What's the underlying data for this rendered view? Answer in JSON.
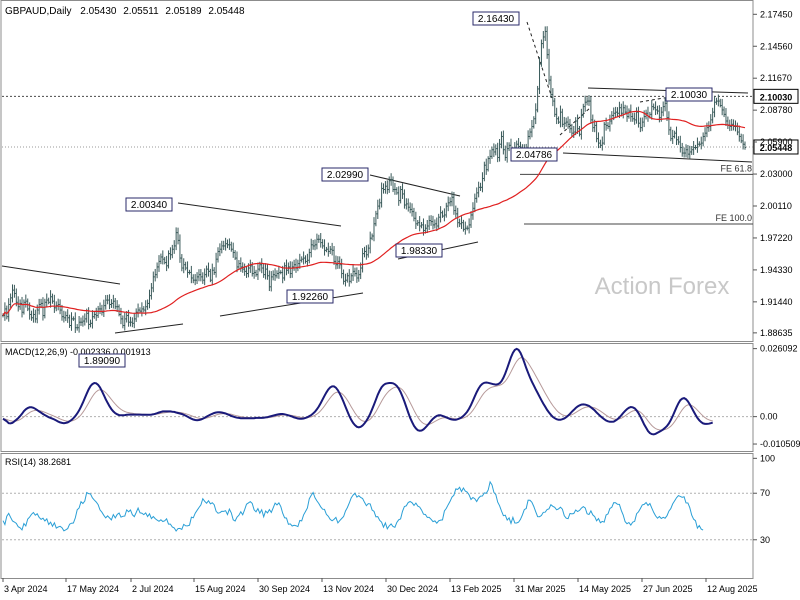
{
  "chart_data": {
    "type": "candlestick",
    "symbol": "GBPAUD",
    "timeframe": "Daily",
    "ohlc_header": {
      "open": "2.05430",
      "high": "2.05511",
      "low": "2.05189",
      "close": "2.05448"
    },
    "watermark": "Action Forex",
    "x_tick_labels": [
      "3 Apr 2024",
      "17 May 2024",
      "2 Jul 2024",
      "15 Aug 2024",
      "30 Sep 2024",
      "13 Nov 2024",
      "30 Dec 2024",
      "13 Feb 2025",
      "31 Mar 2025",
      "14 May 2025",
      "27 Jun 2025",
      "12 Aug 2025"
    ],
    "price_panel": {
      "ylim": [
        1.8808,
        2.1802
      ],
      "y_tick_labels": [
        "2.17450",
        "2.14560",
        "2.11670",
        "2.08780",
        "2.05900",
        "2.03000",
        "2.00110",
        "1.97220",
        "1.94330",
        "1.91440",
        "1.88635"
      ],
      "current_price_label": "2.05448",
      "resistance_label": "2.10030",
      "key_levels": [
        {
          "label": "2.16430",
          "value": 2.1643,
          "date": "2025-03-31"
        },
        {
          "label": "2.10030",
          "value": 2.1003,
          "date": "2025-08-05"
        },
        {
          "label": "2.04786",
          "value": 2.04786,
          "date": "2025-04-07"
        },
        {
          "label": "2.02990",
          "value": 2.0299,
          "date": "2024-11-25"
        },
        {
          "label": "2.00340",
          "value": 2.0034,
          "date": "2024-07-22"
        },
        {
          "label": "1.98330",
          "value": 1.9833,
          "date": "2025-01-08"
        },
        {
          "label": "1.92260",
          "value": 1.9226,
          "date": "2024-10-31"
        },
        {
          "label": "1.89090",
          "value": 1.8909,
          "date": "2024-06-07"
        }
      ],
      "fibonacci": [
        {
          "label": "FE 61.8",
          "value": 2.0297
        },
        {
          "label": "FE 100.0",
          "value": 1.9848
        }
      ],
      "close_series": [
        1.902,
        1.908,
        1.901,
        1.912,
        1.918,
        1.925,
        1.922,
        1.914,
        1.91,
        1.913,
        1.905,
        1.914,
        1.915,
        1.908,
        1.903,
        1.9,
        1.903,
        1.899,
        1.907,
        1.912,
        1.913,
        1.902,
        1.914,
        1.916,
        1.914,
        1.919,
        1.915,
        1.909,
        1.911,
        1.912,
        1.907,
        1.901,
        1.9,
        1.902,
        1.9,
        1.893,
        1.899,
        1.899,
        1.891,
        1.891,
        1.896,
        1.896,
        1.897,
        1.899,
        1.904,
        1.894,
        1.895,
        1.901,
        1.903,
        1.902,
        1.908,
        1.908,
        1.905,
        1.911,
        1.916,
        1.916,
        1.912,
        1.913,
        1.915,
        1.91,
        1.91,
        1.903,
        1.899,
        1.893,
        1.899,
        1.902,
        1.896,
        1.896,
        1.895,
        1.899,
        1.905,
        1.907,
        1.906,
        1.908,
        1.907,
        1.91,
        1.913,
        1.92,
        1.927,
        1.937,
        1.939,
        1.946,
        1.951,
        1.955,
        1.953,
        1.95,
        1.947,
        1.958,
        1.957,
        1.962,
        1.965,
        1.977,
        1.97,
        1.954,
        1.945,
        1.948,
        1.945,
        1.941,
        1.941,
        1.936,
        1.934,
        1.934,
        1.937,
        1.939,
        1.937,
        1.934,
        1.939,
        1.944,
        1.942,
        1.934,
        1.943,
        1.941,
        1.953,
        1.96,
        1.962,
        1.965,
        1.965,
        1.967,
        1.966,
        1.966,
        1.962,
        1.959,
        1.954,
        1.946,
        1.949,
        1.946,
        1.944,
        1.942,
        1.94,
        1.945,
        1.947,
        1.94,
        1.941,
        1.939,
        1.944,
        1.948,
        1.945,
        1.939,
        1.944,
        1.938,
        1.928,
        1.937,
        1.939,
        1.938,
        1.94,
        1.941,
        1.941,
        1.936,
        1.947,
        1.943,
        1.946,
        1.94,
        1.946,
        1.948,
        1.945,
        1.949,
        1.952,
        1.953,
        1.954,
        1.951,
        1.952,
        1.959,
        1.966,
        1.965,
        1.966,
        1.971,
        1.971,
        1.968,
        1.965,
        1.961,
        1.962,
        1.96,
        1.962,
        1.961,
        1.951,
        1.948,
        1.951,
        1.948,
        1.94,
        1.933,
        1.934,
        1.938,
        1.933,
        1.938,
        1.942,
        1.94,
        1.936,
        1.939,
        1.945,
        1.958,
        1.96,
        1.957,
        1.963,
        1.972,
        1.974,
        1.985,
        1.994,
        2.001,
        2.004,
        2.017,
        2.016,
        2.019,
        2.016,
        2.024,
        2.025,
        2.016,
        2.016,
        2.013,
        2.006,
        2.016,
        2.012,
        2.002,
        2.003,
        2.0,
        1.998,
        1.996,
        1.99,
        1.985,
        1.986,
        1.983,
        1.984,
        1.979,
        1.981,
        1.983,
        1.988,
        1.987,
        1.984,
        1.985,
        1.983,
        1.991,
        1.995,
        1.992,
        1.993,
        2.001,
        2.004,
        2.005,
        2.009,
        1.997,
        1.994,
        1.986,
        1.985,
        1.986,
        1.98,
        1.981,
        1.981,
        1.984,
        1.993,
        1.999,
        2.008,
        2.013,
        2.018,
        2.018,
        2.026,
        2.038,
        2.034,
        2.044,
        2.046,
        2.052,
        2.05,
        2.053,
        2.045,
        2.057,
        2.064,
        2.052,
        2.045,
        2.053,
        2.056,
        2.047,
        2.052,
        2.053,
        2.057,
        2.055,
        2.051,
        2.052,
        2.047,
        2.053,
        2.064,
        2.068,
        2.073,
        2.08,
        2.088,
        2.107,
        2.13,
        2.148,
        2.154,
        2.159,
        2.138,
        2.115,
        2.102,
        2.096,
        2.084,
        2.08,
        2.077,
        2.086,
        2.075,
        2.076,
        2.077,
        2.075,
        2.071,
        2.067,
        2.068,
        2.078,
        2.071,
        2.066,
        2.083,
        2.091,
        2.095,
        2.096,
        2.096,
        2.079,
        2.072,
        2.074,
        2.062,
        2.058,
        2.056,
        2.058,
        2.075,
        2.074,
        2.073,
        2.078,
        2.083,
        2.085,
        2.086,
        2.085,
        2.09,
        2.085,
        2.09,
        2.086,
        2.082,
        2.087,
        2.082,
        2.08,
        2.079,
        2.086,
        2.076,
        2.072,
        2.077,
        2.082,
        2.085,
        2.082,
        2.084,
        2.091,
        2.09,
        2.088,
        2.087,
        2.081,
        2.086,
        2.091,
        2.094,
        2.081,
        2.07,
        2.062,
        2.064,
        2.067,
        2.061,
        2.059,
        2.054,
        2.049,
        2.049,
        2.052,
        2.048,
        2.05,
        2.052,
        2.054,
        2.054,
        2.057,
        2.057,
        2.058,
        2.064,
        2.067,
        2.072,
        2.073,
        2.079,
        2.086,
        2.095,
        2.096,
        2.096,
        2.092,
        2.088,
        2.084,
        2.078,
        2.074,
        2.073,
        2.075,
        2.073,
        2.073,
        2.068,
        2.064,
        2.06,
        2.057,
        2.054
      ]
    },
    "macd_panel": {
      "label": "MACD(12,26,9) -0.002336 0.001913",
      "y_tick_labels": [
        "0.026092",
        "0.00",
        "-0.010509"
      ],
      "ylim": [
        -0.0128,
        0.0271
      ],
      "macd_series": [
        -0.0008,
        -0.0013,
        -0.0018,
        -0.0025,
        -0.0026,
        -0.0024,
        -0.0018,
        -0.0012,
        -0.0006,
        0.0002,
        0.0011,
        0.0021,
        0.0028,
        0.0033,
        0.0036,
        0.0036,
        0.0034,
        0.003,
        0.0025,
        0.002,
        0.0015,
        0.001,
        0.0006,
        0.0002,
        -0.0002,
        -0.0005,
        -0.0008,
        -0.0011,
        -0.0015,
        -0.0019,
        -0.0022,
        -0.0024,
        -0.0025,
        -0.0024,
        -0.0022,
        -0.0018,
        -0.0013,
        -0.0006,
        0.0002,
        0.0012,
        0.0024,
        0.0038,
        0.0054,
        0.0071,
        0.0088,
        0.0104,
        0.0117,
        0.0125,
        0.0129,
        0.0128,
        0.0122,
        0.0112,
        0.0098,
        0.0083,
        0.0067,
        0.0053,
        0.004,
        0.0029,
        0.002,
        0.0013,
        0.0009,
        0.0006,
        0.0005,
        0.0005,
        0.0006,
        0.0007,
        0.0008,
        0.0008,
        0.0008,
        0.0008,
        0.0008,
        0.0008,
        0.0008,
        0.0007,
        0.0007,
        0.0007,
        0.0007,
        0.0007,
        0.0008,
        0.0009,
        0.0011,
        0.0013,
        0.0016,
        0.0018,
        0.002,
        0.002,
        0.002,
        0.002,
        0.002,
        0.0019,
        0.0018,
        0.0016,
        0.0014,
        0.0012,
        0.001,
        0.0007,
        0.0004,
        0.0,
        -0.0004,
        -0.0008,
        -0.0011,
        -0.0013,
        -0.0014,
        -0.0013,
        -0.0011,
        -0.0008,
        -0.0004,
        0.0,
        0.0004,
        0.0008,
        0.0011,
        0.0014,
        0.0016,
        0.0017,
        0.0017,
        0.0016,
        0.0014,
        0.0012,
        0.0009,
        0.0006,
        0.0003,
        0.0,
        -0.0002,
        -0.0004,
        -0.0005,
        -0.0006,
        -0.0006,
        -0.0006,
        -0.0006,
        -0.0006,
        -0.0006,
        -0.0006,
        -0.0006,
        -0.0005,
        -0.0005,
        -0.0005,
        -0.0005,
        -0.0004,
        -0.0003,
        -0.0002,
        0.0,
        0.0002,
        0.0004,
        0.0006,
        0.0008,
        0.0009,
        0.001,
        0.001,
        0.0009,
        0.0007,
        0.0005,
        0.0003,
        0.0,
        -0.0003,
        -0.0005,
        -0.0007,
        -0.0008,
        -0.0008,
        -0.0007,
        -0.0005,
        -0.0002,
        0.0002,
        0.0006,
        0.0012,
        0.0019,
        0.0028,
        0.0039,
        0.0052,
        0.0066,
        0.008,
        0.0093,
        0.0104,
        0.0112,
        0.0116,
        0.0116,
        0.0111,
        0.0101,
        0.0088,
        0.0073,
        0.0056,
        0.0038,
        0.002,
        0.0003,
        -0.0012,
        -0.0024,
        -0.0033,
        -0.0039,
        -0.0041,
        -0.0039,
        -0.0034,
        -0.0026,
        -0.0016,
        -0.0004,
        0.0011,
        0.0028,
        0.0046,
        0.0065,
        0.0084,
        0.01,
        0.0113,
        0.0121,
        0.0126,
        0.0128,
        0.0129,
        0.0129,
        0.0128,
        0.0124,
        0.0118,
        0.0108,
        0.0094,
        0.0077,
        0.0058,
        0.0037,
        0.0016,
        -0.0004,
        -0.0021,
        -0.0035,
        -0.0045,
        -0.0052,
        -0.0054,
        -0.0053,
        -0.0049,
        -0.0042,
        -0.0034,
        -0.0025,
        -0.0016,
        -0.0008,
        -0.0002,
        0.0003,
        0.0005,
        0.0005,
        0.0003,
        0.0,
        -0.0003,
        -0.0006,
        -0.0009,
        -0.0011,
        -0.0012,
        -0.0012,
        -0.001,
        -0.0007,
        -0.0003,
        0.0003,
        0.001,
        0.0019,
        0.0031,
        0.0045,
        0.0061,
        0.0078,
        0.0094,
        0.0108,
        0.0119,
        0.0126,
        0.013,
        0.0131,
        0.013,
        0.0128,
        0.0126,
        0.0124,
        0.0123,
        0.0124,
        0.0128,
        0.0136,
        0.0149,
        0.0166,
        0.0186,
        0.0207,
        0.0228,
        0.0245,
        0.0256,
        0.026,
        0.0256,
        0.0245,
        0.0228,
        0.0208,
        0.0187,
        0.0168,
        0.015,
        0.0134,
        0.012,
        0.0105,
        0.0091,
        0.0077,
        0.0063,
        0.005,
        0.0038,
        0.0026,
        0.0016,
        0.0007,
        -0.0001,
        -0.0006,
        -0.001,
        -0.0012,
        -0.0012,
        -0.001,
        -0.0007,
        -0.0002,
        0.0004,
        0.0011,
        0.0019,
        0.0026,
        0.0033,
        0.0039,
        0.0043,
        0.0046,
        0.0047,
        0.0046,
        0.0044,
        0.0041,
        0.0036,
        0.003,
        0.0024,
        0.0016,
        0.0009,
        0.0002,
        -0.0004,
        -0.001,
        -0.0015,
        -0.0018,
        -0.002,
        -0.002,
        -0.0019,
        -0.0015,
        -0.001,
        -0.0003,
        0.0005,
        0.0014,
        0.0022,
        0.0029,
        0.0034,
        0.0037,
        0.0036,
        0.0032,
        0.0024,
        0.0013,
        0.0,
        -0.0015,
        -0.003,
        -0.0043,
        -0.0055,
        -0.0063,
        -0.0067,
        -0.0068,
        -0.0066,
        -0.0062,
        -0.0058,
        -0.0054,
        -0.0049,
        -0.0043,
        -0.0036,
        -0.0026,
        -0.0013,
        0.0002,
        0.0019,
        0.0036,
        0.0051,
        0.0063,
        0.0069,
        0.0071,
        0.0067,
        0.0059,
        0.0047,
        0.0034,
        0.002,
        0.0007,
        -0.0005,
        -0.0014,
        -0.0021,
        -0.0026,
        -0.0028,
        -0.0028,
        -0.0027,
        -0.0025,
        -0.0023
      ]
    },
    "rsi_panel": {
      "label": "RSI(14) 38.2681",
      "y_tick_labels": [
        "100",
        "70",
        "30"
      ],
      "ylim": [
        -2,
        102
      ],
      "levels": [
        70,
        30
      ],
      "rsi_series": [
        46.4,
        43.1,
        50.3,
        52.7,
        49.3,
        46.1,
        45.3,
        44.1,
        41.2,
        40.3,
        38.5,
        43.9,
        41.9,
        47.8,
        49.5,
        51.9,
        53.4,
        51.1,
        52.3,
        49.3,
        47.5,
        48.5,
        46.1,
        47.9,
        43.1,
        45.1,
        41.6,
        44.6,
        40.0,
        41.0,
        41.6,
        40.4,
        37.7,
        38.6,
        39.6,
        43.4,
        44.2,
        44.4,
        48.8,
        55.8,
        57.3,
        62.7,
        61.2,
        63.3,
        70.6,
        69.7,
        69.4,
        66.1,
        64.1,
        62.5,
        60.2,
        55.7,
        53.7,
        51.0,
        48.8,
        50.5,
        48.8,
        47.1,
        51.6,
        48.8,
        51.7,
        53.0,
        49.5,
        50.2,
        50.4,
        55.7,
        54.0,
        55.6,
        51.5,
        49.9,
        53.4,
        57.2,
        53.2,
        52.8,
        51.6,
        53.1,
        50.0,
        52.3,
        48.2,
        50.0,
        48.2,
        46.9,
        45.9,
        47.2,
        45.7,
        46.3,
        48.0,
        43.5,
        43.5,
        41.0,
        40.2,
        37.5,
        39.6,
        39.8,
        38.9,
        43.2,
        42.0,
        41.9,
        42.5,
        49.4,
        48.9,
        52.8,
        55.3,
        57.7,
        60.0,
        65.3,
        63.1,
        61.4,
        63.6,
        60.9,
        61.8,
        60.1,
        54.5,
        52.8,
        53.3,
        54.5,
        54.4,
        55.0,
        51.6,
        56.4,
        53.1,
        47.2,
        46.1,
        49.4,
        51.1,
        54.1,
        51.5,
        55.8,
        60.6,
        61.7,
        62.8,
        61.3,
        55.8,
        54.0,
        56.8,
        52.8,
        55.8,
        49.7,
        54.7,
        53.1,
        55.9,
        53.5,
        57.5,
        61.5,
        60.0,
        61.7,
        58.6,
        52.8,
        48.9,
        48.6,
        43.3,
        43.6,
        41.8,
        42.4,
        42.1,
        41.3,
        46.6,
        46.2,
        51.4,
        54.3,
        57.3,
        65.3,
        68.1,
        70.6,
        66.1,
        63.4,
        61.2,
        58.3,
        56.3,
        56.1,
        51.8,
        50.2,
        47.5,
        46.3,
        47.5,
        49.2,
        44.5,
        46.5,
        48.3,
        50.0,
        54.7,
        57.7,
        61.6,
        66.0,
        68.4,
        70.0,
        66.7,
        67.9,
        66.3,
        65.5,
        62.2,
        59.3,
        61.1,
        60.8,
        55.6,
        54.5,
        49.7,
        49.9,
        46.7,
        45.1,
        40.8,
        44.5,
        39.4,
        41.9,
        43.6,
        41.4,
        40.7,
        44.8,
        47.2,
        47.9,
        54.5,
        58.6,
        59.2,
        62.0,
        62.9,
        61.8,
        59.5,
        61.5,
        58.9,
        58.1,
        55.5,
        52.0,
        51.7,
        49.2,
        49.2,
        47.6,
        45.6,
        46.2,
        44.2,
        46.3,
        46.9,
        47.1,
        54.7,
        57.0,
        60.1,
        63.1,
        66.7,
        68.3,
        73.7,
        73.3,
        75.1,
        71.4,
        74.5,
        71.8,
        71.0,
        68.6,
        64.6,
        66.3,
        65.3,
        62.9,
        65.8,
        67.5,
        67.6,
        70.3,
        69.9,
        72.8,
        79.7,
        77.2,
        70.7,
        68.9,
        62.4,
        59.2,
        54.7,
        50.7,
        51.1,
        46.9,
        48.8,
        44.1,
        49.2,
        44.4,
        44.4,
        45.2,
        47.6,
        51.4,
        55.9,
        56.9,
        64.0,
        63.9,
        62.2,
        58.6,
        54.1,
        49.9,
        49.8,
        50.9,
        53.6,
        53.7,
        56.0,
        56.6,
        60.1,
        58.8,
        57.9,
        55.8,
        56.5,
        58.0,
        56.3,
        50.6,
        48.5,
        48.1,
        52.6,
        52.2,
        52.6,
        55.6,
        54.3,
        55.2,
        57.2,
        58.5,
        57.4,
        52.3,
        51.7,
        54.8,
        51.4,
        49.9,
        46.3,
        48.3,
        44.7,
        45.8,
        45.2,
        51.3,
        52.2,
        56.9,
        57.9,
        61.9,
        61.8,
        60.5,
        60.4,
        55.2,
        51.3,
        45.6,
        43.8,
        44.8,
        42.6,
        45.2,
        45.9,
        52.4,
        54.0,
        56.9,
        60.0,
        60.4,
        62.0,
        59.5,
        61.2,
        57.2,
        53.5,
        50.5,
        48.5,
        50.0,
        48.3,
        49.3,
        48.5,
        50.7,
        54.6,
        56.8,
        60.8,
        63.4,
        66.1,
        68.0,
        67.3,
        66.5,
        67.0,
        61.7,
        61.6,
        57.6,
        51.2,
        47.7,
        46.4,
        40.0,
        42.2,
        39.2,
        38.3
      ]
    }
  }
}
